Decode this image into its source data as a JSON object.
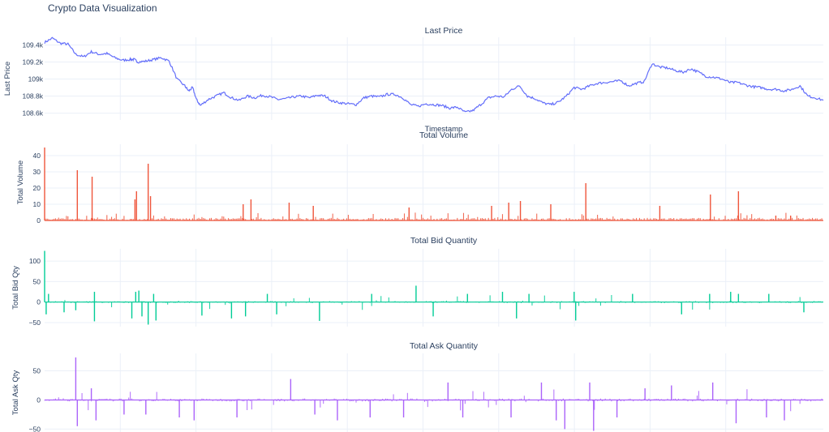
{
  "title": "Crypto Data Visualization",
  "colors": {
    "price": "#636efa",
    "volume": "#ef553b",
    "bid": "#00cc96",
    "ask": "#ab63fa",
    "grid": "#ebf0f8",
    "text": "#2a3f5f"
  },
  "chart_data": [
    {
      "type": "line",
      "title": "Last Price",
      "ylabel": "Last Price",
      "xlabel": "Timestamp",
      "ylim": [
        108520,
        109490
      ],
      "yticks": [
        108600,
        108800,
        109000,
        109200,
        109400
      ],
      "ytick_labels": [
        "108.6k",
        "108.8k",
        "109k",
        "109.2k",
        "109.4k"
      ],
      "series": [
        {
          "x": [
            0,
            10,
            20,
            30,
            40,
            50,
            60,
            70,
            80,
            90,
            100,
            110,
            115,
            120,
            130,
            140,
            150,
            160,
            170,
            180,
            185,
            190,
            195,
            200,
            210,
            220,
            230,
            240,
            250,
            260,
            270,
            280,
            290,
            300,
            310,
            320,
            330,
            340,
            350,
            360,
            370,
            380,
            390,
            400,
            410,
            420,
            430,
            440,
            450,
            460,
            470,
            480,
            490,
            500,
            510,
            520,
            530,
            540,
            550,
            560,
            570,
            580,
            590,
            600,
            610,
            620,
            630,
            640,
            650,
            660,
            670,
            680,
            690,
            700,
            710,
            720,
            730,
            740,
            750,
            760,
            770,
            780,
            790,
            800,
            810,
            820,
            830,
            840,
            850,
            860,
            870,
            880,
            890,
            900,
            910,
            920,
            930,
            940,
            950,
            960,
            970,
            980,
            990,
            1000
          ],
          "values": [
            109430,
            109480,
            109420,
            109410,
            109290,
            109260,
            109320,
            109290,
            109300,
            109250,
            109220,
            109230,
            109230,
            109200,
            109210,
            109230,
            109250,
            109210,
            109000,
            108920,
            108860,
            108900,
            108760,
            108690,
            108760,
            108800,
            108840,
            108780,
            108750,
            108800,
            108780,
            108810,
            108790,
            108760,
            108770,
            108790,
            108800,
            108780,
            108810,
            108800,
            108740,
            108720,
            108710,
            108700,
            108780,
            108800,
            108790,
            108820,
            108820,
            108780,
            108700,
            108680,
            108710,
            108700,
            108690,
            108660,
            108670,
            108610,
            108630,
            108700,
            108780,
            108800,
            108790,
            108880,
            108920,
            108800,
            108770,
            108720,
            108700,
            108730,
            108800,
            108900,
            108880,
            108920,
            108950,
            108960,
            108970,
            108980,
            108920,
            108950,
            108970,
            109180,
            109140,
            109130,
            109100,
            109080,
            109120,
            109080,
            109030,
            109020,
            109000,
            108960,
            108960,
            108930,
            108910,
            108900,
            108880,
            108880,
            108860,
            108880,
            108920,
            108800,
            108780,
            108750
          ]
        }
      ]
    },
    {
      "type": "bar",
      "title": "Total Volume",
      "ylabel": "Total Volume",
      "ylim": [
        0,
        47
      ],
      "yticks": [
        0,
        10,
        20,
        30,
        40
      ],
      "ytick_labels": [
        "0",
        "10",
        "20",
        "30",
        "40"
      ],
      "spikes": [
        [
          0,
          45
        ],
        [
          42,
          31
        ],
        [
          61,
          27
        ],
        [
          116,
          13
        ],
        [
          118,
          18
        ],
        [
          133,
          35
        ],
        [
          136,
          15
        ],
        [
          255,
          10
        ],
        [
          265,
          13
        ],
        [
          314,
          11
        ],
        [
          345,
          9
        ],
        [
          468,
          8
        ],
        [
          574,
          9
        ],
        [
          596,
          11
        ],
        [
          611,
          12
        ],
        [
          650,
          10
        ],
        [
          695,
          23
        ],
        [
          790,
          9
        ],
        [
          855,
          16
        ],
        [
          891,
          18
        ],
        [
          939,
          3
        ],
        [
          958,
          3
        ]
      ]
    },
    {
      "type": "bar",
      "title": "Total Bid Quantity",
      "ylabel": "Total Bid Qty",
      "ylim": [
        -60,
        130
      ],
      "yticks": [
        -50,
        0,
        50,
        100
      ],
      "ytick_labels": [
        "−50",
        "0",
        "50",
        "100"
      ],
      "spikes": [
        [
          0,
          125
        ],
        [
          2,
          -30
        ],
        [
          5,
          20
        ],
        [
          25,
          -25
        ],
        [
          40,
          -20
        ],
        [
          64,
          25
        ],
        [
          64,
          -47
        ],
        [
          112,
          -40
        ],
        [
          117,
          25
        ],
        [
          121,
          28
        ],
        [
          125,
          -35
        ],
        [
          133,
          -55
        ],
        [
          140,
          20
        ],
        [
          143,
          -45
        ],
        [
          202,
          -33
        ],
        [
          240,
          -40
        ],
        [
          258,
          -35
        ],
        [
          286,
          20
        ],
        [
          298,
          -30
        ],
        [
          353,
          -46
        ],
        [
          420,
          20
        ],
        [
          477,
          40
        ],
        [
          499,
          -35
        ],
        [
          543,
          20
        ],
        [
          588,
          25
        ],
        [
          606,
          -40
        ],
        [
          622,
          20
        ],
        [
          680,
          25
        ],
        [
          682,
          -45
        ],
        [
          755,
          20
        ],
        [
          818,
          -30
        ],
        [
          854,
          20
        ],
        [
          881,
          25
        ],
        [
          891,
          20
        ],
        [
          930,
          20
        ],
        [
          975,
          -25
        ]
      ]
    },
    {
      "type": "bar",
      "title": "Total Ask Quantity",
      "ylabel": "Total Ask Qty",
      "ylim": [
        -55,
        80
      ],
      "yticks": [
        -50,
        0,
        50
      ],
      "ytick_labels": [
        "−50",
        "0",
        "50"
      ],
      "spikes": [
        [
          40,
          73
        ],
        [
          42,
          -45
        ],
        [
          60,
          20
        ],
        [
          66,
          -35
        ],
        [
          102,
          -25
        ],
        [
          130,
          -25
        ],
        [
          173,
          -30
        ],
        [
          192,
          -35
        ],
        [
          247,
          -30
        ],
        [
          316,
          36
        ],
        [
          347,
          -25
        ],
        [
          376,
          -35
        ],
        [
          418,
          -30
        ],
        [
          461,
          -30
        ],
        [
          518,
          30
        ],
        [
          537,
          -30
        ],
        [
          599,
          -30
        ],
        [
          638,
          30
        ],
        [
          657,
          -35
        ],
        [
          668,
          -50
        ],
        [
          700,
          30
        ],
        [
          705,
          -53
        ],
        [
          735,
          -30
        ],
        [
          771,
          20
        ],
        [
          805,
          25
        ],
        [
          858,
          30
        ],
        [
          888,
          -40
        ],
        [
          927,
          -30
        ],
        [
          950,
          -35
        ]
      ]
    }
  ]
}
